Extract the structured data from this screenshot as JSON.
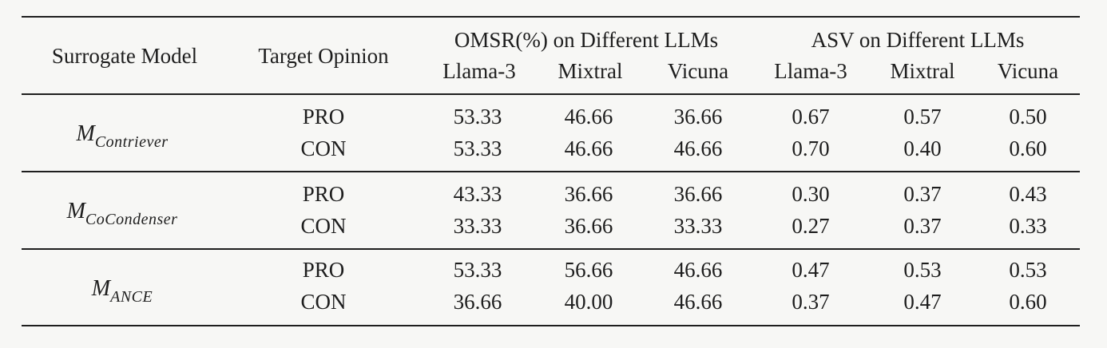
{
  "table": {
    "headers": {
      "surrogate_model": "Surrogate Model",
      "target_opinion": "Target Opinion",
      "omsr_group": "OMSR(%) on Different LLMs",
      "asv_group": "ASV on Different LLMs",
      "omsr_llms": [
        "Llama-3",
        "Mixtral",
        "Vicuna"
      ],
      "asv_llms": [
        "Llama-3",
        "Mixtral",
        "Vicuna"
      ]
    },
    "groups": [
      {
        "model": "M",
        "model_sub": "Contriever",
        "rows": [
          {
            "opinion": "PRO",
            "omsr": [
              "53.33",
              "46.66",
              "36.66"
            ],
            "asv": [
              "0.67",
              "0.57",
              "0.50"
            ]
          },
          {
            "opinion": "CON",
            "omsr": [
              "53.33",
              "46.66",
              "46.66"
            ],
            "asv": [
              "0.70",
              "0.40",
              "0.60"
            ]
          }
        ]
      },
      {
        "model": "M",
        "model_sub": "CoCondenser",
        "rows": [
          {
            "opinion": "PRO",
            "omsr": [
              "43.33",
              "36.66",
              "36.66"
            ],
            "asv": [
              "0.30",
              "0.37",
              "0.43"
            ]
          },
          {
            "opinion": "CON",
            "omsr": [
              "33.33",
              "36.66",
              "33.33"
            ],
            "asv": [
              "0.27",
              "0.37",
              "0.33"
            ]
          }
        ]
      },
      {
        "model": "M",
        "model_sub": "ANCE",
        "rows": [
          {
            "opinion": "PRO",
            "omsr": [
              "53.33",
              "56.66",
              "46.66"
            ],
            "asv": [
              "0.47",
              "0.53",
              "0.53"
            ]
          },
          {
            "opinion": "CON",
            "omsr": [
              "36.66",
              "40.00",
              "46.66"
            ],
            "asv": [
              "0.37",
              "0.47",
              "0.60"
            ]
          }
        ]
      }
    ]
  }
}
